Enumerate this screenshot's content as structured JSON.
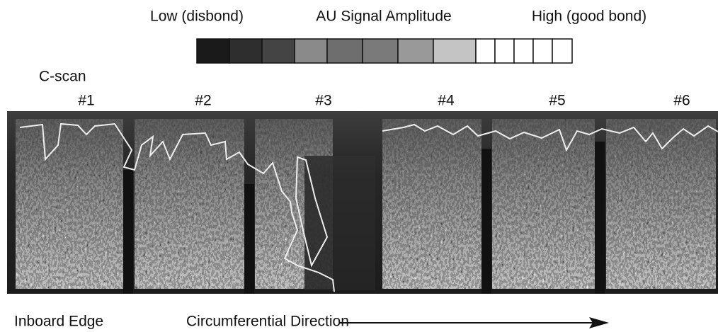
{
  "legend": {
    "low": "Low (disbond)",
    "title": "AU Signal Amplitude",
    "high": "High (good bond)"
  },
  "scan": {
    "label": "C-scan",
    "panels": [
      "#1",
      "#2",
      "#3",
      "#4",
      "#5",
      "#6"
    ]
  },
  "footer": {
    "edge": "Inboard Edge",
    "direction": "Circumferential Direction"
  }
}
